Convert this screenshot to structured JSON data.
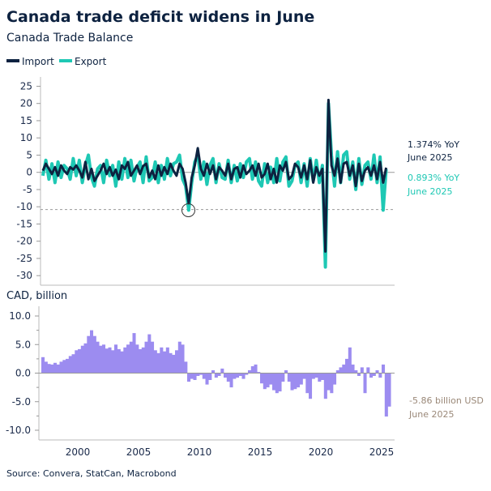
{
  "chart_data": [
    {
      "type": "line",
      "title": "Canada trade deficit widens in June",
      "subtitle": "Canada Trade Balance",
      "x_start": 1997.0,
      "x_step_years": 0.25,
      "xlim": [
        1997,
        2025.5
      ],
      "ylim": [
        -32,
        27
      ],
      "yticks": [
        25,
        20,
        15,
        10,
        5,
        0,
        -5,
        -10,
        -15,
        -20,
        -25,
        -30
      ],
      "reference_line": -10.8,
      "highlight_circle": {
        "x": 2009.1,
        "y": -11
      },
      "colors": {
        "Import": "#0d2240",
        "Export": "#1ec8b4"
      },
      "legend_position": "top-left",
      "series": [
        {
          "name": "Import",
          "values": [
            0.5,
            2.5,
            1.0,
            -0.5,
            1.5,
            -1.0,
            2.0,
            0.5,
            -0.5,
            1.5,
            0.8,
            2.0,
            0.5,
            -1.5,
            3.0,
            -2.0,
            1.0,
            -2.5,
            -1.0,
            0.5,
            2.5,
            -0.5,
            1.5,
            -1.0,
            0.8,
            -2.0,
            2.0,
            1.0,
            3.0,
            -1.0,
            0.5,
            2.0,
            -0.5,
            1.8,
            2.5,
            -1.5,
            0.5,
            -2.0,
            2.0,
            -1.0,
            1.5,
            -0.5,
            2.5,
            0.5,
            -1.0,
            2.5,
            1.0,
            -3.0,
            -9.0,
            -1.5,
            2.0,
            7.0,
            1.0,
            -1.0,
            2.5,
            -0.5,
            2.0,
            -2.0,
            1.5,
            0.5,
            -1.0,
            2.5,
            -2.0,
            1.0,
            1.5,
            -1.5,
            2.0,
            -0.5,
            0.5,
            2.0,
            -1.0,
            2.5,
            -1.5,
            -0.5,
            2.5,
            -2.0,
            1.0,
            -3.0,
            2.0,
            0.5,
            3.0,
            -2.0,
            -1.0,
            2.5,
            1.5,
            -1.5,
            2.0,
            -2.0,
            3.5,
            -3.0,
            1.5,
            -1.0,
            1.0,
            -23.0,
            21.0,
            2.0,
            -1.0,
            4.0,
            -3.0,
            2.5,
            3.0,
            -1.0,
            2.0,
            -4.0,
            2.5,
            -2.5,
            0.5,
            1.5,
            -1.0,
            2.0,
            -2.0,
            3.0,
            -3.0,
            1.374
          ]
        },
        {
          "name": "Export",
          "values": [
            -1.0,
            3.5,
            -2.0,
            2.5,
            -3.0,
            3.0,
            -1.5,
            2.0,
            1.0,
            -2.0,
            4.0,
            -1.0,
            3.5,
            -3.0,
            2.0,
            5.0,
            -1.5,
            -4.0,
            1.0,
            2.0,
            -3.0,
            3.5,
            -1.0,
            2.0,
            -4.0,
            3.0,
            -2.0,
            4.0,
            -1.5,
            3.5,
            -2.5,
            1.5,
            3.0,
            -3.0,
            4.5,
            -2.5,
            -1.5,
            3.0,
            -3.0,
            2.0,
            -2.0,
            4.0,
            -1.0,
            2.5,
            3.0,
            5.0,
            -2.0,
            -4.0,
            -11.0,
            -3.0,
            3.0,
            5.0,
            -2.0,
            3.0,
            -3.5,
            2.0,
            4.0,
            -3.0,
            2.5,
            -1.5,
            -2.0,
            3.5,
            -3.0,
            2.0,
            -2.5,
            2.5,
            -1.5,
            3.0,
            4.0,
            -2.0,
            3.0,
            -2.5,
            -4.0,
            2.5,
            -3.0,
            1.5,
            -3.0,
            4.0,
            -2.5,
            3.0,
            4.5,
            -4.0,
            -2.5,
            2.0,
            3.0,
            -3.0,
            2.5,
            -4.0,
            4.0,
            -2.5,
            3.5,
            -3.0,
            2.0,
            -27.5,
            20.0,
            5.0,
            -4.0,
            6.0,
            -3.0,
            5.0,
            6.0,
            -2.0,
            3.0,
            -5.0,
            4.0,
            -3.5,
            2.0,
            3.0,
            -2.0,
            5.0,
            -3.0,
            4.5,
            -11.0,
            0.893
          ]
        }
      ],
      "annotations": [
        {
          "series": "Import",
          "text": "1.374% YoY",
          "date": "June 2025"
        },
        {
          "series": "Export",
          "text": "0.893% YoY",
          "date": "June 2025"
        }
      ]
    },
    {
      "type": "bar",
      "ylabel": "CAD, billion",
      "x_start": 1997.0,
      "x_step_years": 0.25,
      "xlim": [
        1997,
        2025.5
      ],
      "ylim": [
        -11.5,
        11.5
      ],
      "yticks": [
        "10.0",
        "5.0",
        "0.0",
        "-5.0",
        "-10.0"
      ],
      "xticks": [
        "2000",
        "2005",
        "2010",
        "2015",
        "2020",
        "2025"
      ],
      "color": "#9c8cf0",
      "values": [
        2.8,
        2.0,
        1.6,
        1.5,
        1.8,
        1.5,
        2.0,
        2.3,
        2.5,
        3.0,
        3.3,
        4.0,
        4.2,
        4.8,
        5.2,
        6.5,
        7.5,
        6.5,
        5.5,
        4.8,
        5.0,
        4.3,
        4.5,
        4.0,
        5.0,
        4.2,
        3.8,
        4.5,
        5.0,
        5.5,
        7.0,
        5.0,
        4.2,
        4.5,
        5.5,
        6.8,
        5.5,
        4.0,
        3.5,
        4.5,
        3.8,
        4.5,
        3.5,
        3.2,
        4.0,
        5.5,
        5.0,
        2.0,
        -1.5,
        -1.0,
        -1.2,
        -0.5,
        -0.3,
        -1.0,
        -2.0,
        -1.2,
        0.5,
        -0.8,
        -0.5,
        0.8,
        -0.8,
        -1.5,
        -2.5,
        -1.0,
        -0.8,
        -0.5,
        -1.0,
        -0.3,
        0.5,
        1.2,
        1.5,
        0.2,
        -1.8,
        -2.8,
        -2.5,
        -2.0,
        -3.0,
        -3.5,
        -3.2,
        -1.5,
        0.5,
        -1.5,
        -3.0,
        -2.8,
        -2.5,
        -2.0,
        -1.0,
        -3.5,
        -4.5,
        -1.0,
        -0.8,
        -1.5,
        -1.2,
        -4.5,
        -3.0,
        -3.5,
        -2.0,
        0.5,
        1.0,
        1.5,
        2.5,
        4.5,
        1.5,
        0.5,
        -0.5,
        1.0,
        -3.5,
        1.0,
        -0.8,
        -0.5,
        0.5,
        -0.8,
        1.5,
        -7.6,
        -5.86
      ],
      "annotation": {
        "text": "-5.86 billion USD",
        "date": "June 2025"
      }
    }
  ],
  "source": "Source: Convera, StatCan, Macrobond"
}
